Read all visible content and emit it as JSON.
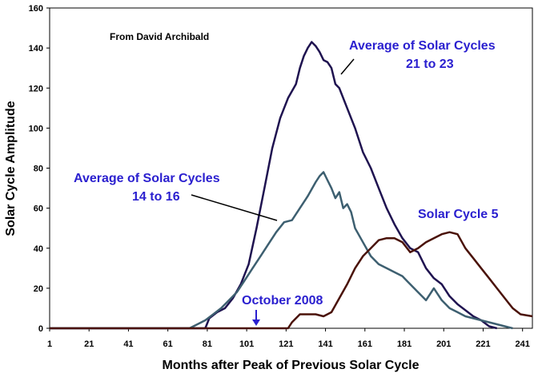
{
  "chart_data": {
    "type": "line",
    "title": "",
    "credit": "From David Archibald",
    "xlabel": "Months after Peak of Previous Solar Cycle",
    "ylabel": "Solar Cycle Amplitude",
    "xlim": [
      1,
      246
    ],
    "ylim": [
      0,
      160
    ],
    "grid": false,
    "x_ticks": [
      "1",
      "21",
      "41",
      "61",
      "81",
      "101",
      "121",
      "141",
      "161",
      "181",
      "201",
      "221",
      "241"
    ],
    "y_ticks": [
      "0",
      "20",
      "40",
      "60",
      "80",
      "100",
      "120",
      "140",
      "160"
    ],
    "series": [
      {
        "name": "Average of Solar Cycles 21 to 23",
        "color": "#1f1350",
        "points": [
          [
            1,
            0
          ],
          [
            80,
            0
          ],
          [
            82,
            5
          ],
          [
            86,
            8
          ],
          [
            90,
            10
          ],
          [
            94,
            15
          ],
          [
            98,
            22
          ],
          [
            102,
            32
          ],
          [
            106,
            50
          ],
          [
            110,
            70
          ],
          [
            114,
            90
          ],
          [
            118,
            105
          ],
          [
            122,
            115
          ],
          [
            126,
            122
          ],
          [
            128,
            130
          ],
          [
            130,
            136
          ],
          [
            132,
            140
          ],
          [
            134,
            143
          ],
          [
            136,
            141
          ],
          [
            138,
            138
          ],
          [
            140,
            134
          ],
          [
            142,
            133
          ],
          [
            144,
            130
          ],
          [
            146,
            122
          ],
          [
            148,
            120
          ],
          [
            152,
            110
          ],
          [
            156,
            100
          ],
          [
            160,
            88
          ],
          [
            164,
            80
          ],
          [
            168,
            70
          ],
          [
            172,
            60
          ],
          [
            176,
            52
          ],
          [
            180,
            45
          ],
          [
            184,
            40
          ],
          [
            188,
            38
          ],
          [
            192,
            30
          ],
          [
            196,
            25
          ],
          [
            200,
            22
          ],
          [
            204,
            16
          ],
          [
            208,
            12
          ],
          [
            212,
            9
          ],
          [
            216,
            6
          ],
          [
            220,
            4
          ],
          [
            224,
            1
          ],
          [
            228,
            0
          ]
        ]
      },
      {
        "name": "Average of Solar Cycles 14 to 16",
        "color": "#3d5f70",
        "points": [
          [
            1,
            0
          ],
          [
            72,
            0
          ],
          [
            76,
            2
          ],
          [
            80,
            4
          ],
          [
            84,
            7
          ],
          [
            88,
            10
          ],
          [
            92,
            14
          ],
          [
            96,
            18
          ],
          [
            100,
            24
          ],
          [
            104,
            30
          ],
          [
            108,
            36
          ],
          [
            112,
            42
          ],
          [
            116,
            48
          ],
          [
            120,
            53
          ],
          [
            124,
            54
          ],
          [
            128,
            60
          ],
          [
            132,
            66
          ],
          [
            136,
            73
          ],
          [
            138,
            76
          ],
          [
            140,
            78
          ],
          [
            142,
            74
          ],
          [
            144,
            70
          ],
          [
            146,
            65
          ],
          [
            148,
            68
          ],
          [
            150,
            60
          ],
          [
            152,
            62
          ],
          [
            154,
            58
          ],
          [
            156,
            50
          ],
          [
            160,
            43
          ],
          [
            164,
            36
          ],
          [
            168,
            32
          ],
          [
            172,
            30
          ],
          [
            176,
            28
          ],
          [
            180,
            26
          ],
          [
            184,
            22
          ],
          [
            188,
            18
          ],
          [
            192,
            14
          ],
          [
            196,
            20
          ],
          [
            200,
            14
          ],
          [
            204,
            10
          ],
          [
            208,
            8
          ],
          [
            212,
            6
          ],
          [
            216,
            5
          ],
          [
            220,
            4
          ],
          [
            224,
            3
          ],
          [
            228,
            2
          ],
          [
            232,
            1
          ],
          [
            236,
            0
          ]
        ]
      },
      {
        "name": "Solar Cycle 5",
        "color": "#4a1208",
        "points": [
          [
            1,
            0
          ],
          [
            122,
            0
          ],
          [
            124,
            3
          ],
          [
            128,
            7
          ],
          [
            132,
            7
          ],
          [
            136,
            7
          ],
          [
            140,
            6
          ],
          [
            144,
            8
          ],
          [
            148,
            15
          ],
          [
            152,
            22
          ],
          [
            156,
            30
          ],
          [
            160,
            36
          ],
          [
            164,
            40
          ],
          [
            168,
            44
          ],
          [
            172,
            45
          ],
          [
            176,
            45
          ],
          [
            180,
            43
          ],
          [
            184,
            38
          ],
          [
            188,
            40
          ],
          [
            192,
            43
          ],
          [
            196,
            45
          ],
          [
            200,
            47
          ],
          [
            204,
            48
          ],
          [
            208,
            47
          ],
          [
            212,
            40
          ],
          [
            216,
            35
          ],
          [
            220,
            30
          ],
          [
            224,
            25
          ],
          [
            228,
            20
          ],
          [
            232,
            15
          ],
          [
            236,
            10
          ],
          [
            240,
            7
          ],
          [
            246,
            6
          ]
        ]
      }
    ],
    "annotations": [
      {
        "text": "Average of Solar Cycles",
        "color": "#2a1fcf"
      },
      {
        "text": "21 to 23",
        "color": "#2a1fcf"
      },
      {
        "text": "Average of Solar Cycles",
        "color": "#2a1fcf"
      },
      {
        "text": "14 to 16",
        "color": "#2a1fcf"
      },
      {
        "text": "Solar Cycle 5",
        "color": "#2a1fcf"
      },
      {
        "text": "October 2008",
        "color": "#2a1fcf"
      }
    ]
  }
}
